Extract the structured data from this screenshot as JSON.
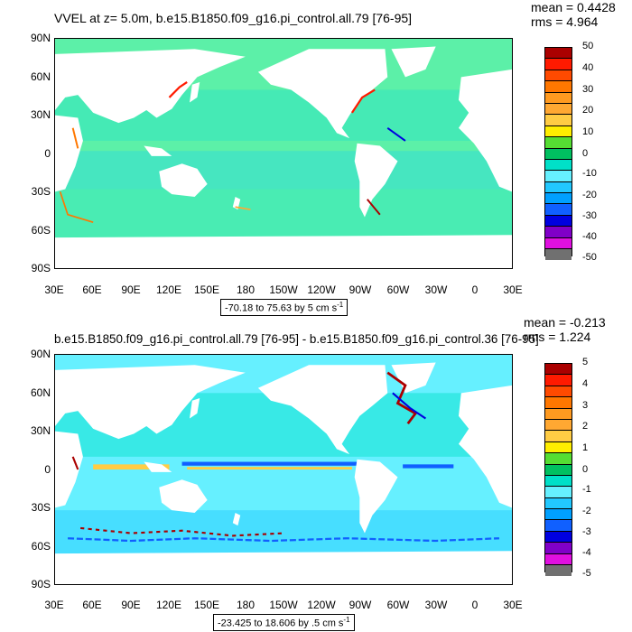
{
  "panel1": {
    "title": "VVEL at z=   5.0m, b.e15.B1850.f09_g16.pi_control.all.79 [76-95]",
    "mean": "mean = 0.4428",
    "rms": "rms = 4.964",
    "range_text": "-70.18 to 75.63 by 5 cm s",
    "range_unit_exp": "-1",
    "colorbar_labels": [
      "50",
      "40",
      "30",
      "20",
      "10",
      "0",
      "-10",
      "-20",
      "-30",
      "-40",
      "-50"
    ]
  },
  "panel2": {
    "title": "b.e15.B1850.f09_g16.pi_control.all.79 [76-95] - b.e15.B1850.f09_g16.pi_control.36 [76-95]",
    "mean": "mean = -0.213",
    "rms": "rms = 1.224",
    "range_text": "-23.425 to 18.606 by .5 cm s",
    "range_unit_exp": "-1",
    "colorbar_labels": [
      "5",
      "4",
      "3",
      "2",
      "1",
      "0",
      "-1",
      "-2",
      "-3",
      "-4",
      "-5"
    ]
  },
  "lat_labels": [
    "90N",
    "60N",
    "30N",
    "0",
    "30S",
    "60S",
    "90S"
  ],
  "lon_labels": [
    "30E",
    "60E",
    "90E",
    "120E",
    "150E",
    "180",
    "150W",
    "120W",
    "90W",
    "60W",
    "30W",
    "0",
    "30E"
  ],
  "colors": {
    "ocean_fill": "#5cf0a8",
    "land": "#ffffff",
    "palette": [
      "#aa0000",
      "#ff1a00",
      "#ff7700",
      "#ffa832",
      "#ffcc44",
      "#ffee00",
      "#55dd33",
      "#00c060",
      "#00e0c8",
      "#66f0ff",
      "#22c8ff",
      "#00a0ff",
      "#1060ff",
      "#0000e0",
      "#8000c8",
      "#e010e0",
      "#c8c8c8",
      "#707070"
    ]
  }
}
